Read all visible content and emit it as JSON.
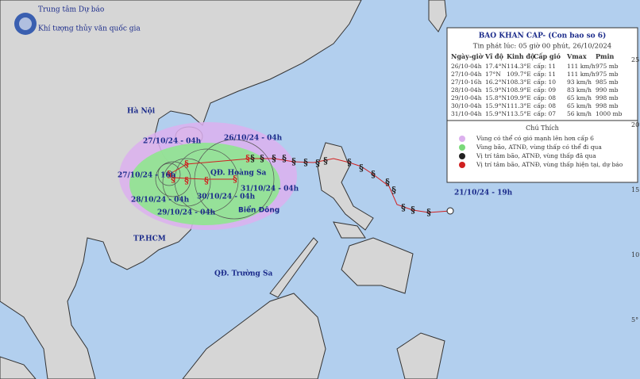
{
  "header": {
    "agency": "Trung tâm Dự báo",
    "agency_sub": "Khí tượng thủy văn quốc gia"
  },
  "bulletin": {
    "title": "BAO KHAN CAP- (Con bao so 6)",
    "issued": "Tin phát lúc: 05 giờ 00 phút, 26/10/2024",
    "columns": [
      "Ngày-giờ",
      "Vĩ độ",
      "Kinh độ",
      "Cấp gió",
      "Vmax",
      "Pmin"
    ],
    "rows": [
      [
        "26/10-04h",
        "17.4°N",
        "114.3°E",
        "cấp: 11",
        "111 km/h",
        "975 mb"
      ],
      [
        "27/10-04h",
        "17°N",
        "109.7°E",
        "cấp: 11",
        "111 km/h",
        "975 mb"
      ],
      [
        "27/10-16h",
        "16.2°N",
        "108.3°E",
        "cấp: 10",
        "93 km/h",
        "985 mb"
      ],
      [
        "28/10-04h",
        "15.9°N",
        "108.9°E",
        "cấp: 09",
        "83 km/h",
        "990 mb"
      ],
      [
        "29/10-04h",
        "15.8°N",
        "109.9°E",
        "cấp: 08",
        "65 km/h",
        "998 mb"
      ],
      [
        "30/10-04h",
        "15.9°N",
        "111.3°E",
        "cấp: 08",
        "65 km/h",
        "998 mb"
      ],
      [
        "31/10-04h",
        "15.9°N",
        "113.5°E",
        "cấp: 07",
        "56 km/h",
        "1000 mb"
      ]
    ]
  },
  "legend": {
    "title": "Chú Thích",
    "items": [
      "Vùng có thể có gió mạnh lên hơn cấp 6",
      "Vùng bão, ATNĐ, vùng thấp có thể đi qua",
      "Vị trí tâm bão, ATNĐ, vùng thấp đã qua",
      "Vị trí tâm bão, ATNĐ, vùng thấp hiện tại, dự báo"
    ]
  },
  "places": [
    "Hà Nội",
    "QĐ. Hoàng Sa",
    "Biển Đông",
    "TP.HCM",
    "QĐ. Trường Sa"
  ],
  "track_labels": [
    "26/10/24 - 04h",
    "27/10/24 - 04h",
    "27/10/24 - 16h",
    "28/10/24 - 04h",
    "29/10/24 - 04h",
    "30/10/24 - 04h",
    "31/10/24 - 04h",
    "21/10/24 - 19h"
  ],
  "lat_labels": [
    "25°",
    "20°",
    "15°",
    "10°",
    "5°"
  ]
}
